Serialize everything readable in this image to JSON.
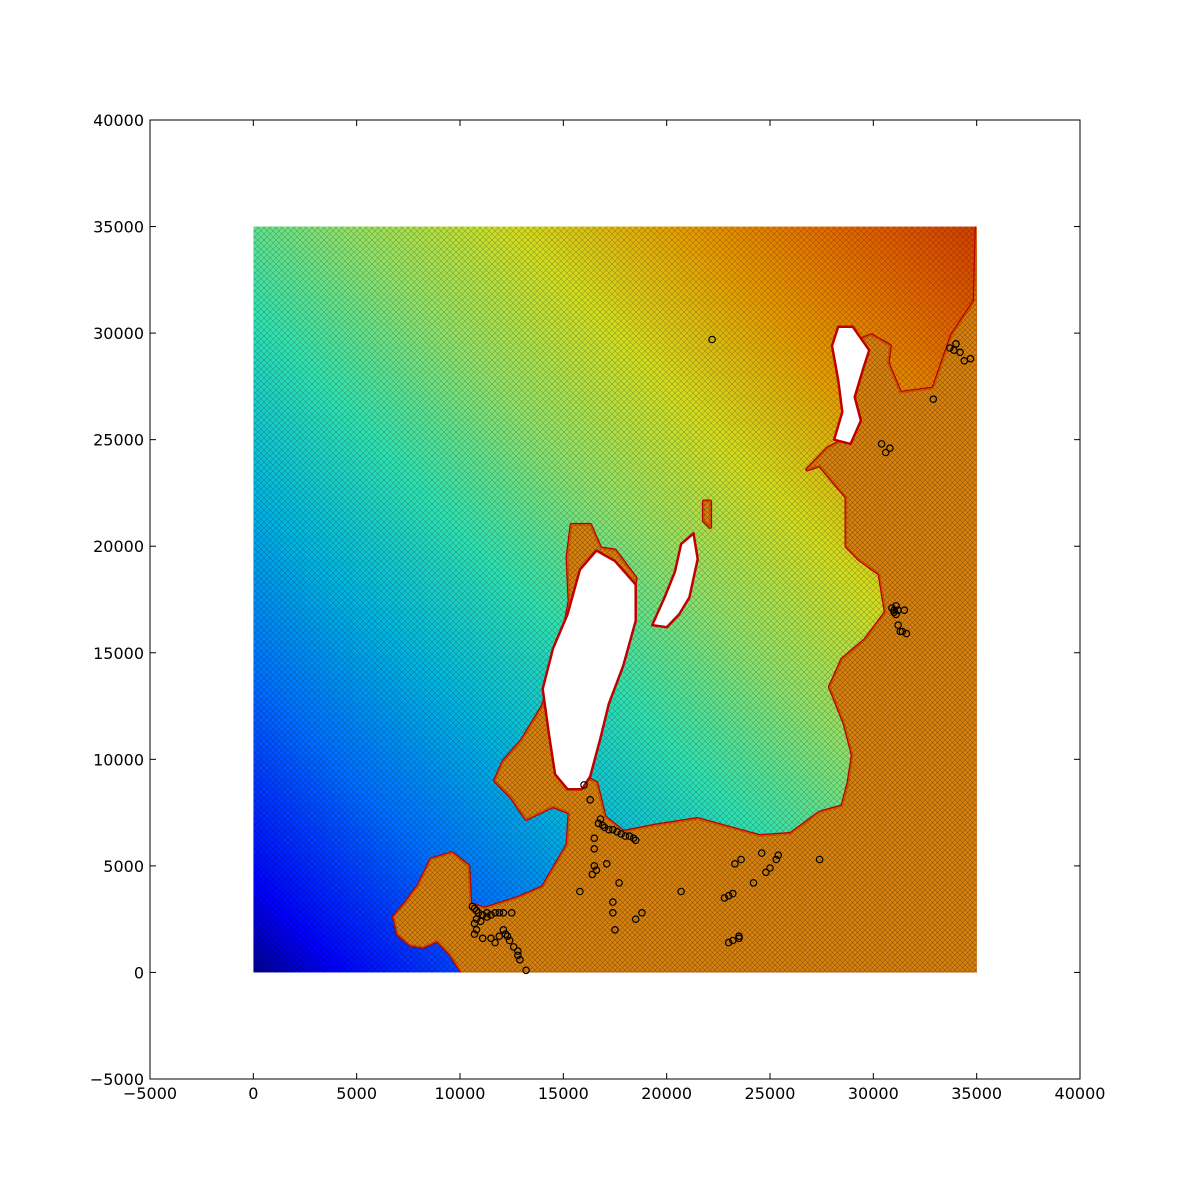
{
  "chart_data": {
    "type": "heatmap",
    "title": "",
    "xlabel": "",
    "ylabel": "",
    "xlim": [
      -5000,
      40000
    ],
    "ylim": [
      -5000,
      40000
    ],
    "grid": false,
    "x_ticks": [
      -5000,
      0,
      5000,
      10000,
      15000,
      20000,
      25000,
      30000,
      35000,
      40000
    ],
    "y_ticks": [
      -5000,
      0,
      5000,
      10000,
      15000,
      20000,
      25000,
      30000,
      35000,
      40000
    ],
    "colormap": "jet",
    "colors": {
      "low": "#00007f",
      "mid": "#7fff7f",
      "high": "#bf0000",
      "mesh": "#000000"
    },
    "domain_extent": {
      "x": [
        0,
        35000
      ],
      "y": [
        0,
        35000
      ]
    },
    "land_polygons": [
      [
        [
          10100,
          0
        ],
        [
          9500,
          900
        ],
        [
          8900,
          1500
        ],
        [
          8200,
          1200
        ],
        [
          7600,
          1300
        ],
        [
          7000,
          1800
        ],
        [
          6800,
          2600
        ],
        [
          7400,
          3300
        ],
        [
          8000,
          4100
        ],
        [
          8600,
          5300
        ],
        [
          9600,
          5600
        ],
        [
          10400,
          5000
        ],
        [
          10500,
          3200
        ],
        [
          11200,
          3000
        ],
        [
          12800,
          3500
        ],
        [
          14000,
          4000
        ],
        [
          15200,
          6000
        ],
        [
          15300,
          7500
        ],
        [
          14500,
          7800
        ],
        [
          13200,
          7200
        ],
        [
          12500,
          8200
        ],
        [
          11700,
          9000
        ],
        [
          12100,
          9900
        ],
        [
          13000,
          10900
        ],
        [
          14000,
          12500
        ],
        [
          14800,
          14900
        ],
        [
          15300,
          17400
        ],
        [
          15200,
          19500
        ],
        [
          15400,
          21000
        ],
        [
          16300,
          21000
        ],
        [
          16800,
          19900
        ],
        [
          17500,
          19800
        ],
        [
          18500,
          18500
        ],
        [
          18000,
          15700
        ],
        [
          17000,
          13700
        ],
        [
          16500,
          12300
        ],
        [
          16200,
          11200
        ],
        [
          16000,
          9200
        ],
        [
          16600,
          8900
        ],
        [
          17000,
          7300
        ],
        [
          17900,
          6600
        ],
        [
          19500,
          6900
        ],
        [
          21500,
          7200
        ],
        [
          23000,
          6800
        ],
        [
          24500,
          6400
        ],
        [
          26000,
          6500
        ],
        [
          27400,
          7500
        ],
        [
          28500,
          7800
        ],
        [
          28800,
          8900
        ],
        [
          29000,
          10200
        ],
        [
          28600,
          11700
        ],
        [
          27900,
          13400
        ],
        [
          28500,
          14700
        ],
        [
          29600,
          15600
        ],
        [
          30600,
          16900
        ],
        [
          30300,
          18700
        ],
        [
          29300,
          19400
        ],
        [
          28700,
          20000
        ],
        [
          28700,
          22300
        ],
        [
          27400,
          23800
        ],
        [
          26800,
          23600
        ],
        [
          27800,
          24600
        ],
        [
          28600,
          25000
        ],
        [
          29400,
          27900
        ],
        [
          28600,
          29400
        ],
        [
          29900,
          29900
        ],
        [
          30800,
          29400
        ],
        [
          30700,
          28600
        ],
        [
          31300,
          27200
        ],
        [
          32900,
          27400
        ],
        [
          33800,
          29900
        ],
        [
          34900,
          31500
        ],
        [
          35000,
          35000
        ],
        [
          35100,
          0
        ]
      ],
      [
        [
          21800,
          21200
        ],
        [
          21800,
          22100
        ],
        [
          22100,
          22100
        ],
        [
          22100,
          20900
        ]
      ]
    ],
    "water_holes": [
      [
        [
          16600,
          19800
        ],
        [
          17500,
          19300
        ],
        [
          18500,
          18200
        ],
        [
          18500,
          16500
        ],
        [
          17900,
          14400
        ],
        [
          17200,
          12600
        ],
        [
          16800,
          11000
        ],
        [
          16300,
          9200
        ],
        [
          15900,
          8600
        ],
        [
          15200,
          8600
        ],
        [
          14600,
          9300
        ],
        [
          14300,
          11200
        ],
        [
          14000,
          13300
        ],
        [
          14500,
          15200
        ],
        [
          15200,
          16800
        ],
        [
          15800,
          18900
        ]
      ],
      [
        [
          20000,
          16200
        ],
        [
          20600,
          16800
        ],
        [
          21100,
          17600
        ],
        [
          21500,
          19400
        ],
        [
          21300,
          20600
        ],
        [
          20700,
          20100
        ],
        [
          20400,
          18800
        ],
        [
          19900,
          17600
        ],
        [
          19300,
          16300
        ]
      ],
      [
        [
          28000,
          29400
        ],
        [
          28300,
          30300
        ],
        [
          29000,
          30300
        ],
        [
          29800,
          29200
        ],
        [
          29500,
          28300
        ],
        [
          29100,
          27000
        ],
        [
          29400,
          25900
        ],
        [
          28900,
          24800
        ],
        [
          28100,
          25000
        ],
        [
          28500,
          26300
        ],
        [
          28300,
          27800
        ]
      ]
    ],
    "gauge_points": [
      [
        22200,
        29700
      ],
      [
        34000,
        29500
      ],
      [
        33700,
        29300
      ],
      [
        33900,
        29200
      ],
      [
        34200,
        29100
      ],
      [
        34700,
        28800
      ],
      [
        34400,
        28700
      ],
      [
        32900,
        26900
      ],
      [
        30400,
        24800
      ],
      [
        30800,
        24600
      ],
      [
        30600,
        24400
      ],
      [
        30900,
        17100
      ],
      [
        31000,
        16900
      ],
      [
        31100,
        17200
      ],
      [
        31100,
        16800
      ],
      [
        31200,
        17000
      ],
      [
        31000,
        17000
      ],
      [
        31500,
        17000
      ],
      [
        31200,
        16300
      ],
      [
        31300,
        16000
      ],
      [
        31400,
        16000
      ],
      [
        31600,
        15900
      ],
      [
        16000,
        8800
      ],
      [
        16300,
        8100
      ],
      [
        16700,
        7000
      ],
      [
        16800,
        7200
      ],
      [
        16900,
        6900
      ],
      [
        17000,
        6800
      ],
      [
        17200,
        6700
      ],
      [
        17400,
        6700
      ],
      [
        17600,
        6600
      ],
      [
        17800,
        6500
      ],
      [
        18000,
        6400
      ],
      [
        18200,
        6400
      ],
      [
        18400,
        6300
      ],
      [
        18500,
        6200
      ],
      [
        16500,
        6300
      ],
      [
        16500,
        5800
      ],
      [
        16500,
        5000
      ],
      [
        16600,
        4800
      ],
      [
        16400,
        4600
      ],
      [
        17100,
        5100
      ],
      [
        17700,
        4200
      ],
      [
        15800,
        3800
      ],
      [
        17400,
        3300
      ],
      [
        17400,
        2800
      ],
      [
        17500,
        2000
      ],
      [
        18500,
        2500
      ],
      [
        18800,
        2800
      ],
      [
        20700,
        3800
      ],
      [
        10600,
        3100
      ],
      [
        10700,
        3000
      ],
      [
        10800,
        2900
      ],
      [
        10900,
        2800
      ],
      [
        11100,
        2700
      ],
      [
        11300,
        2800
      ],
      [
        11500,
        2700
      ],
      [
        11700,
        2800
      ],
      [
        11900,
        2800
      ],
      [
        12100,
        2800
      ],
      [
        12500,
        2800
      ],
      [
        10800,
        2500
      ],
      [
        10700,
        2300
      ],
      [
        10800,
        2000
      ],
      [
        10700,
        1800
      ],
      [
        11100,
        1600
      ],
      [
        11500,
        1600
      ],
      [
        11700,
        1400
      ],
      [
        11900,
        1700
      ],
      [
        12100,
        2000
      ],
      [
        12200,
        1800
      ],
      [
        12300,
        1700
      ],
      [
        12400,
        1500
      ],
      [
        12600,
        1200
      ],
      [
        12800,
        1000
      ],
      [
        12800,
        800
      ],
      [
        12900,
        600
      ],
      [
        13200,
        100
      ],
      [
        11000,
        2400
      ],
      [
        11300,
        2600
      ],
      [
        22800,
        3500
      ],
      [
        23000,
        3600
      ],
      [
        23200,
        3700
      ],
      [
        23000,
        1400
      ],
      [
        23200,
        1500
      ],
      [
        23500,
        1700
      ],
      [
        23500,
        1600
      ],
      [
        23300,
        5100
      ],
      [
        23600,
        5300
      ],
      [
        24200,
        4200
      ],
      [
        24600,
        5600
      ],
      [
        24800,
        4700
      ],
      [
        25000,
        4900
      ],
      [
        25300,
        5300
      ],
      [
        25400,
        5500
      ],
      [
        27400,
        5300
      ]
    ]
  }
}
